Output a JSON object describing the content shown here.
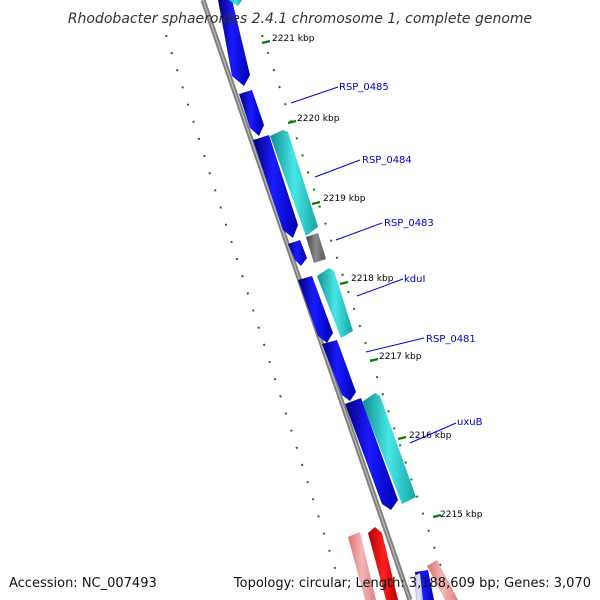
{
  "title": "Rhodobacter sphaeroides 2.4.1 chromosome 1, complete genome",
  "accession": "Accession: NC_007493",
  "summary": "Topology: circular; Length: 3,188,609 bp; Genes: 3,070",
  "colors": {
    "background": "#ffffff",
    "backbone": "#808080",
    "cds_forward": "#0a0ae6",
    "cds_reverse": "#2ed3d3",
    "pseudo": "#707070",
    "rna_dark": "#ee0000",
    "rna_light": "#ee9090",
    "tick": "#0a800a",
    "label_line": "#0000dd",
    "label_text": "#0000cc"
  },
  "tick_labels": [
    "2221 kbp",
    "2220 kbp",
    "2219 kbp",
    "2218 kbp",
    "2217 kbp",
    "2216 kbp",
    "2215 kbp"
  ],
  "gene_labels": [
    "RSP_0485",
    "RSP_0484",
    "RSP_0483",
    "kduI",
    "RSP_0481",
    "uxuB"
  ],
  "icons": [
    "forward-cds-arrow-icon",
    "reverse-cds-arrow-icon"
  ]
}
